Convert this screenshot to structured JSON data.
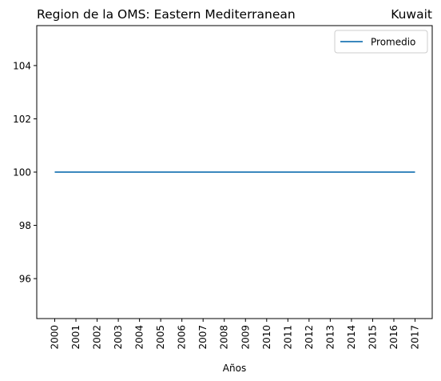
{
  "chart_data": {
    "type": "line",
    "title_left": "Region de la OMS: Eastern Mediterranean",
    "title_right": "Kuwait",
    "xlabel": "Años",
    "ylabel": "",
    "x": [
      2000,
      2001,
      2002,
      2003,
      2004,
      2005,
      2006,
      2007,
      2008,
      2009,
      2010,
      2011,
      2012,
      2013,
      2014,
      2015,
      2016,
      2017
    ],
    "xticks": [
      "2000",
      "2001",
      "2002",
      "2003",
      "2004",
      "2005",
      "2006",
      "2007",
      "2008",
      "2009",
      "2010",
      "2011",
      "2012",
      "2013",
      "2014",
      "2015",
      "2016",
      "2017"
    ],
    "yticks": [
      96,
      98,
      100,
      102,
      104
    ],
    "ylim": [
      94.5,
      105.5
    ],
    "grid": false,
    "legend_position": "top-right",
    "series": [
      {
        "name": "Promedio",
        "color": "#1f77b4",
        "values": [
          100,
          100,
          100,
          100,
          100,
          100,
          100,
          100,
          100,
          100,
          100,
          100,
          100,
          100,
          100,
          100,
          100,
          100
        ]
      }
    ]
  }
}
